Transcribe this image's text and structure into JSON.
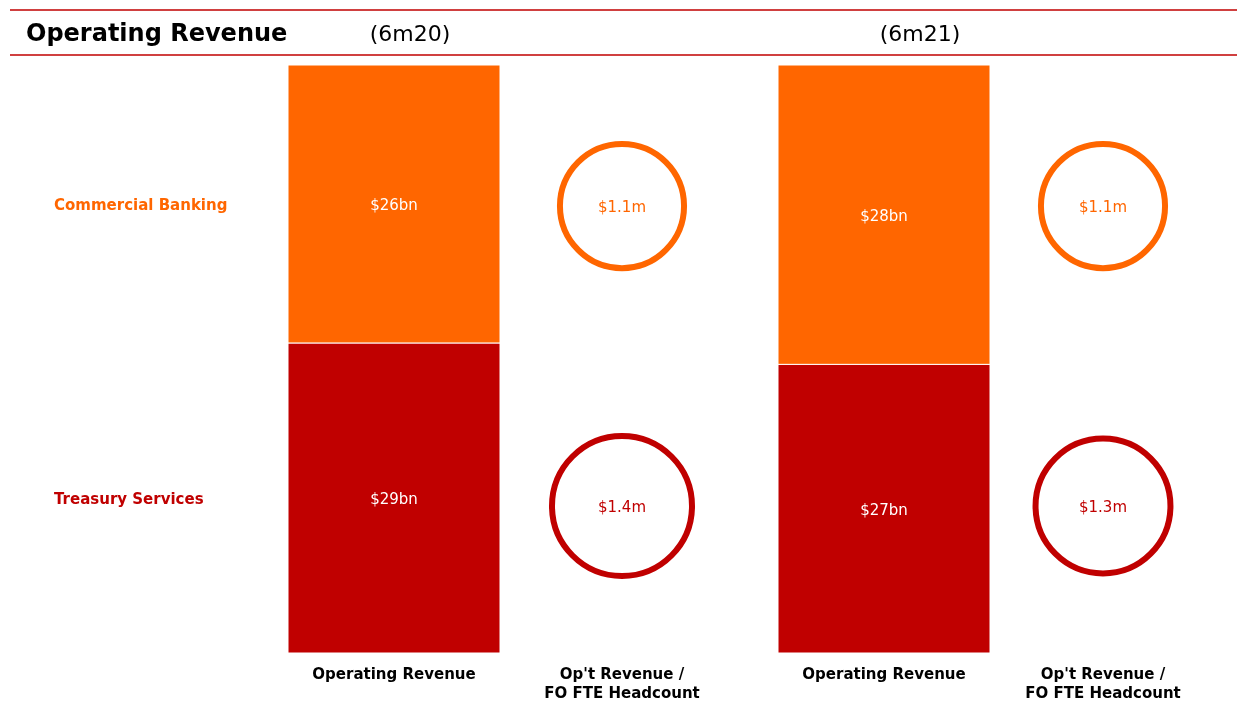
{
  "chart_data": [
    {
      "type": "bar",
      "title": "Operating Revenue",
      "annotations": [
        "(6m20)",
        "(6m21)"
      ],
      "categories": [
        "Operating Revenue",
        "Operating Revenue"
      ],
      "stacked": true,
      "ylim": [
        0,
        55
      ],
      "tick_labels": "x",
      "series": [
        {
          "name": "Treasury Services",
          "color": "#c00000",
          "values": [
            29,
            27
          ],
          "value_labels": [
            "$29bn",
            "$27bn"
          ]
        },
        {
          "name": "Commercial Banking",
          "color": "#ff6600",
          "values": [
            26,
            28
          ],
          "value_labels": [
            "$26bn",
            "$28bn"
          ]
        }
      ]
    },
    {
      "type": "other",
      "categories": [
        "Op't Revenue / FO FTE Headcount",
        "Op't Revenue / FO FTE Headcount"
      ],
      "series": [
        {
          "color": "#c00000",
          "values": [
            1.4,
            1.3
          ],
          "value_labels": [
            "$1.4m",
            "$1.3m"
          ]
        },
        {
          "color": "#ff6600",
          "values": [
            1.1,
            1.1
          ],
          "value_labels": [
            "$1.1m",
            "$1.1m"
          ]
        }
      ]
    }
  ]
}
